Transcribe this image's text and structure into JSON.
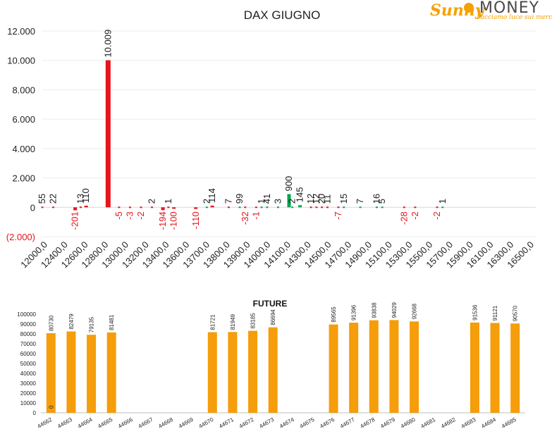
{
  "brand": {
    "name": "SunnyMONEY",
    "word1": "Sunny",
    "word2": "MONEY",
    "tagline": "Facciamo luce sui mercati"
  },
  "chart_data": [
    {
      "type": "bar",
      "title": "DAX GIUGNO",
      "categories": [
        "12000,0",
        "12400,0",
        "12600,0",
        "12800,0",
        "13000,0",
        "13200,0",
        "13400,0",
        "13600,0",
        "13700,0",
        "13800,0",
        "13900,0",
        "14000,0",
        "14100,0",
        "14300,0",
        "14500,0",
        "14700,0",
        "14900,0",
        "15100,0",
        "15300,0",
        "15500,0",
        "15700,0",
        "15900,0",
        "16100,0",
        "16300,0",
        "16500,0"
      ],
      "ylim": [
        -2000,
        12000
      ],
      "yticks": [
        -2000,
        0,
        2000,
        4000,
        6000,
        8000,
        10000,
        12000
      ],
      "ytick_labels": [
        "(2.000)",
        "0",
        "2.000",
        "4.000",
        "6.000",
        "8.000",
        "10.000",
        "12.000"
      ],
      "grid": true,
      "colors": {
        "positive_call": "#00a651",
        "negative": "#e8141b",
        "label_positive": "#1a1a1a",
        "label_negative": "#e8141b"
      },
      "bars": [
        {
          "x": 12000,
          "value": 55,
          "label": "55",
          "color": "#e8141b"
        },
        {
          "x": 12100,
          "value": 22,
          "label": "22",
          "color": "#e8141b"
        },
        {
          "x": 12300,
          "value": -201,
          "label": "-201",
          "color": "#e8141b"
        },
        {
          "x": 12350,
          "value": 13,
          "label": "13",
          "color": "#e8141b"
        },
        {
          "x": 12400,
          "value": 110,
          "label": "110",
          "color": "#e8141b"
        },
        {
          "x": 12600,
          "value": 10009,
          "label": "10.009",
          "color": "#e8141b"
        },
        {
          "x": 12700,
          "value": -5,
          "label": "-5",
          "color": "#e8141b"
        },
        {
          "x": 12800,
          "value": -3,
          "label": "-3",
          "color": "#e8141b"
        },
        {
          "x": 12900,
          "value": -2,
          "label": "-2",
          "color": "#e8141b"
        },
        {
          "x": 13000,
          "value": 2,
          "label": "2",
          "color": "#e8141b"
        },
        {
          "x": 13100,
          "value": -194,
          "label": "-194",
          "color": "#e8141b"
        },
        {
          "x": 13150,
          "value": 1,
          "label": "1",
          "color": "#e8141b"
        },
        {
          "x": 13200,
          "value": -100,
          "label": "-100",
          "color": "#e8141b"
        },
        {
          "x": 13400,
          "value": -110,
          "label": "-110",
          "color": "#e8141b"
        },
        {
          "x": 13500,
          "value": 2,
          "label": "2",
          "color": "#00a651"
        },
        {
          "x": 13550,
          "value": 114,
          "label": "114",
          "color": "#e8141b"
        },
        {
          "x": 13700,
          "value": 7,
          "label": "7",
          "color": "#e8141b"
        },
        {
          "x": 13800,
          "value": 99,
          "label": "99",
          "color": "#00a651"
        },
        {
          "x": 13850,
          "value": -32,
          "label": "-32",
          "color": "#e8141b"
        },
        {
          "x": 13950,
          "value": -1,
          "label": "-1",
          "color": "#e8141b"
        },
        {
          "x": 14000,
          "value": 1,
          "label": "1",
          "color": "#00a651"
        },
        {
          "x": 14050,
          "value": 41,
          "label": "41",
          "color": "#00a651"
        },
        {
          "x": 14150,
          "value": 3,
          "label": "3",
          "color": "#00a651"
        },
        {
          "x": 14250,
          "value": 900,
          "label": "900",
          "color": "#00a651"
        },
        {
          "x": 14280,
          "value": 2,
          "label": "2",
          "color": "#00a651"
        },
        {
          "x": 14350,
          "value": 145,
          "label": "145",
          "color": "#00a651"
        },
        {
          "x": 14450,
          "value": 12,
          "label": "12",
          "color": "#e8141b"
        },
        {
          "x": 14500,
          "value": 12,
          "label": "12",
          "color": "#e8141b"
        },
        {
          "x": 14550,
          "value": 20,
          "label": "20",
          "color": "#e8141b"
        },
        {
          "x": 14600,
          "value": 11,
          "label": "11",
          "color": "#e8141b"
        },
        {
          "x": 14700,
          "value": -7,
          "label": "-7",
          "color": "#e8141b"
        },
        {
          "x": 14750,
          "value": 15,
          "label": "15",
          "color": "#00a651"
        },
        {
          "x": 14900,
          "value": 7,
          "label": "7",
          "color": "#00a651"
        },
        {
          "x": 15050,
          "value": 16,
          "label": "16",
          "color": "#00a651"
        },
        {
          "x": 15100,
          "value": 5,
          "label": "5",
          "color": "#00a651"
        },
        {
          "x": 15300,
          "value": -28,
          "label": "-28",
          "color": "#e8141b"
        },
        {
          "x": 15400,
          "value": -2,
          "label": "-2",
          "color": "#e8141b"
        },
        {
          "x": 15600,
          "value": -2,
          "label": "-2",
          "color": "#e8141b"
        },
        {
          "x": 15650,
          "value": 1,
          "label": "1",
          "color": "#00a651"
        }
      ]
    },
    {
      "type": "bar",
      "title": "FUTURE",
      "categories": [
        "44662",
        "44663",
        "44664",
        "44665",
        "44666",
        "44667",
        "44668",
        "44669",
        "44670",
        "44671",
        "44672",
        "44673",
        "44674",
        "44675",
        "44676",
        "44677",
        "44678",
        "44679",
        "44680",
        "44681",
        "44682",
        "44683",
        "44684",
        "44685"
      ],
      "values": [
        80730,
        82479,
        79135,
        81481,
        null,
        null,
        null,
        null,
        81721,
        81949,
        83185,
        86694,
        null,
        null,
        89565,
        91396,
        93838,
        94029,
        92668,
        null,
        null,
        91536,
        91121,
        90570
      ],
      "ylim": [
        0,
        100000
      ],
      "yticks": [
        0,
        10000,
        20000,
        30000,
        40000,
        50000,
        60000,
        70000,
        80000,
        90000,
        100000
      ],
      "extra_labels": [
        {
          "category": "44662",
          "text": "0"
        }
      ],
      "bar_color": "#f59d0b",
      "grid": false
    }
  ]
}
